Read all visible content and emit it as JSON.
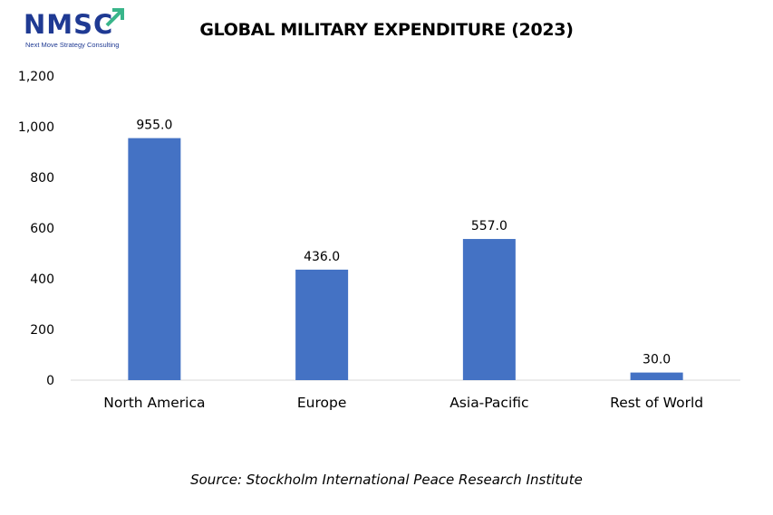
{
  "logo": {
    "name": "NMSC",
    "tagline": "Next Move Strategy Consulting"
  },
  "colors": {
    "bar": "#4472c4",
    "axis": "#d9d9d9",
    "brand": "#1f3a93",
    "brand_accent": "#39b58a"
  },
  "source": "Source: Stockholm International Peace Research Institute",
  "chart_data": {
    "type": "bar",
    "title": "GLOBAL MILITARY EXPENDITURE (2023)",
    "xlabel": "",
    "ylabel": "",
    "categories": [
      "North America",
      "Europe",
      "Asia-Pacific",
      "Rest of World"
    ],
    "values": [
      955.0,
      436.0,
      557.0,
      30.0
    ],
    "value_labels": [
      "955.0",
      "436.0",
      "557.0",
      "30.0"
    ],
    "ylim": [
      0,
      1200
    ],
    "yticks": [
      0,
      200,
      400,
      600,
      800,
      1000,
      1200
    ],
    "ytick_labels": [
      "0",
      "200",
      "400",
      "600",
      "800",
      "1,000",
      "1,200"
    ],
    "grid": false,
    "legend": "none"
  }
}
